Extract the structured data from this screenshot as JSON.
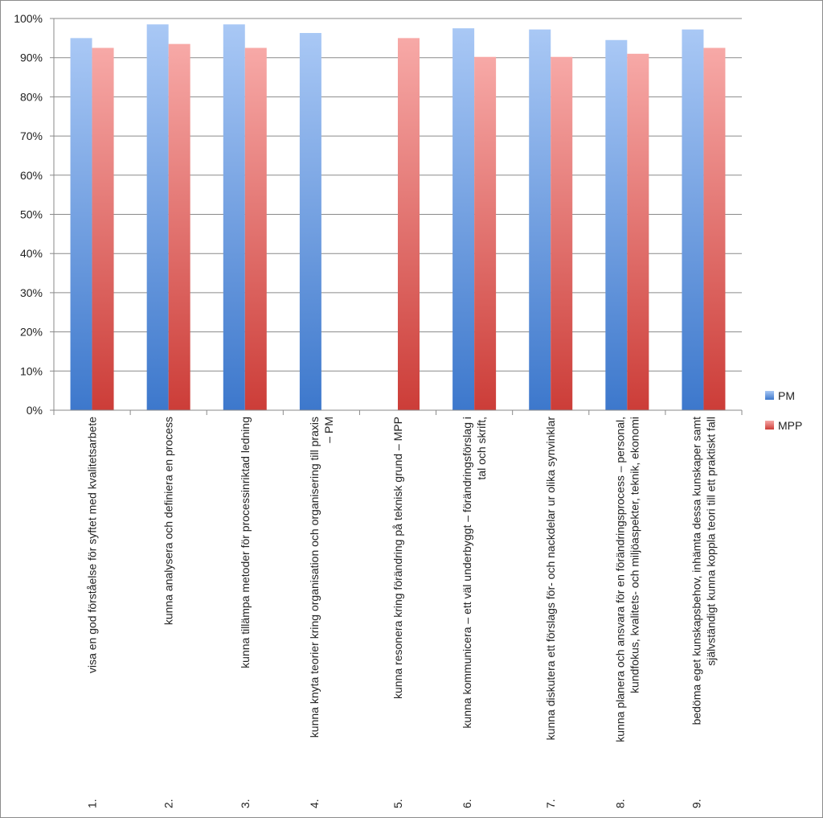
{
  "chart_data": {
    "type": "bar",
    "categories": [
      "1.\tvisa en god förståelse för syftet med kvalitetsarbete",
      "2.\tkunna analysera och definiera en process",
      "3.\tkunna tillämpa metoder för processinriktad ledning",
      "4.\tkunna knyta teorier kring organisation och organisering till praxis – PM",
      "5.\tkunna resonera kring förändring på teknisk grund – MPP",
      "6.\tkunna kommunicera – ett väl underbyggt – förändringsförslag i tal och skrift,",
      "7.\tkunna diskutera ett förslags för- och nackdelar ur olika synvinklar",
      "8.\tkunna planera och ansvara för en förändringsprocess – personal, kundfokus, kvalitets- och miljöaspekter, teknik, ekonomi",
      "9.\tbedöma eget kunskapsbehov, inhämta dessa kunskaper samt självständigt kunna koppla teori till ett praktiskt fall"
    ],
    "category_lines": [
      [
        {
          "num": "1.",
          "text": "visa en god förståelse för syftet med kvalitetsarbete"
        }
      ],
      [
        {
          "num": "2.",
          "text": "kunna analysera och definiera en process"
        }
      ],
      [
        {
          "num": "3.",
          "text": "kunna tillämpa metoder för processinriktad ledning"
        }
      ],
      [
        {
          "num": "4.",
          "text": "kunna knyta teorier kring organisation och organisering till praxis"
        },
        {
          "num": "",
          "text": "– PM"
        }
      ],
      [
        {
          "num": "5.",
          "text": "kunna resonera kring förändring på teknisk grund – MPP"
        }
      ],
      [
        {
          "num": "6.",
          "text": "kunna kommunicera – ett väl underbyggt – förändringsförslag i"
        },
        {
          "num": "",
          "text": "tal och skrift,"
        }
      ],
      [
        {
          "num": "7.",
          "text": "kunna diskutera ett förslags för- och nackdelar ur olika synvinklar"
        }
      ],
      [
        {
          "num": "8.",
          "text": "kunna planera och ansvara för en förändringsprocess – personal,"
        },
        {
          "num": "",
          "text": "kundfokus, kvalitets- och miljöaspekter, teknik, ekonomi"
        }
      ],
      [
        {
          "num": "9.",
          "text": "bedöma eget kunskapsbehov, inhämta dessa kunskaper samt"
        },
        {
          "num": "",
          "text": "självständigt kunna koppla teori till ett praktiskt fall"
        }
      ]
    ],
    "series": [
      {
        "name": "PM",
        "values": [
          95,
          98.5,
          98.5,
          96.3,
          null,
          97.5,
          97.2,
          94.5,
          97.2
        ],
        "color_top": "#a9c8f5",
        "color_bottom": "#3d78cc"
      },
      {
        "name": "MPP",
        "values": [
          92.5,
          93.5,
          92.5,
          null,
          95,
          90.2,
          90.2,
          91,
          92.5
        ],
        "color_top": "#f7a9a7",
        "color_bottom": "#cc3d38"
      }
    ],
    "y_ticks": [
      "0%",
      "10%",
      "20%",
      "30%",
      "40%",
      "50%",
      "60%",
      "70%",
      "80%",
      "90%",
      "100%"
    ],
    "ylim": [
      0,
      100
    ],
    "grid": true,
    "legend_position": "right"
  }
}
